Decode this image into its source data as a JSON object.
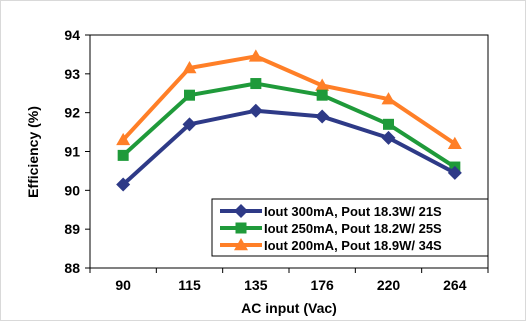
{
  "chart_data": {
    "type": "line",
    "categories": [
      "90",
      "115",
      "135",
      "176",
      "220",
      "264"
    ],
    "xlabel": "AC input (Vac)",
    "ylabel": "Efficiency (%)",
    "ylim": [
      88,
      94
    ],
    "yticks": [
      "88",
      "89",
      "90",
      "91",
      "92",
      "93",
      "94"
    ],
    "grid": false,
    "legend_position": "bottom-right",
    "series": [
      {
        "name": "Iout 300mA, Pout 18.3W/ 21S",
        "values": [
          90.15,
          91.7,
          92.05,
          91.9,
          91.35,
          90.45
        ],
        "color": "#2E3A87",
        "marker": "diamond"
      },
      {
        "name": "Iout 250mA, Pout 18.2W/ 25S",
        "values": [
          90.9,
          92.45,
          92.75,
          92.45,
          91.7,
          90.6
        ],
        "color": "#1F9A3A",
        "marker": "square"
      },
      {
        "name": "Iout 200mA, Pout 18.9W/ 34S",
        "values": [
          91.3,
          93.15,
          93.45,
          92.7,
          92.35,
          91.2
        ],
        "color": "#FF7F27",
        "marker": "triangle"
      }
    ]
  }
}
